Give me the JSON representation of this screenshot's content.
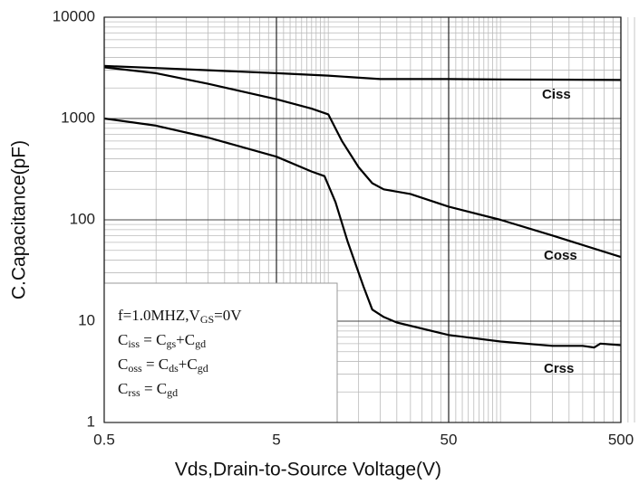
{
  "chart_data": {
    "type": "line",
    "xlabel": "Vds,Drain-to-Source Voltage(V)",
    "ylabel": "C.Capacitance(pF)",
    "xscale": "log",
    "yscale": "log",
    "xlim": [
      0.5,
      500
    ],
    "ylim": [
      1,
      10000
    ],
    "xticks": [
      0.5,
      5,
      50,
      500
    ],
    "yticks": [
      1,
      10,
      100,
      1000,
      10000
    ],
    "grid": true,
    "series": [
      {
        "name": "Ciss",
        "color": "#000000",
        "x": [
          0.5,
          1,
          2,
          5,
          10,
          20,
          50,
          100,
          200,
          500
        ],
        "values": [
          3300,
          3150,
          3000,
          2800,
          2650,
          2450,
          2450,
          2430,
          2420,
          2400
        ]
      },
      {
        "name": "Coss",
        "color": "#000000",
        "x": [
          0.5,
          1,
          2,
          5,
          8,
          10,
          12,
          15,
          18,
          21,
          30,
          50,
          100,
          200,
          500
        ],
        "values": [
          3200,
          2800,
          2200,
          1550,
          1250,
          1100,
          600,
          330,
          230,
          200,
          180,
          135,
          100,
          70,
          43
        ]
      },
      {
        "name": "Crss",
        "color": "#000000",
        "x": [
          0.5,
          1,
          2,
          5,
          8,
          9.5,
          11,
          13,
          16,
          18,
          21,
          25,
          50,
          100,
          200,
          300,
          350,
          380,
          500
        ],
        "values": [
          1000,
          850,
          650,
          420,
          300,
          270,
          150,
          60,
          22,
          13,
          11,
          9.7,
          7.3,
          6.3,
          5.7,
          5.7,
          5.5,
          6,
          5.8
        ]
      }
    ],
    "note": [
      [
        {
          "t": "f=1.0MHZ,V"
        },
        {
          "sub": "GS"
        },
        {
          "t": "=0V"
        }
      ],
      [
        {
          "t": "C"
        },
        {
          "sub": "iss"
        },
        {
          "t": " = C"
        },
        {
          "sub": "gs"
        },
        {
          "t": "+C"
        },
        {
          "sub": "gd"
        }
      ],
      [
        {
          "t": "C"
        },
        {
          "sub": "oss"
        },
        {
          "t": " = C"
        },
        {
          "sub": "ds"
        },
        {
          "t": "+C"
        },
        {
          "sub": "gd"
        }
      ],
      [
        {
          "t": "C"
        },
        {
          "sub": "rss"
        },
        {
          "t": " = C"
        },
        {
          "sub": "gd"
        }
      ]
    ]
  }
}
